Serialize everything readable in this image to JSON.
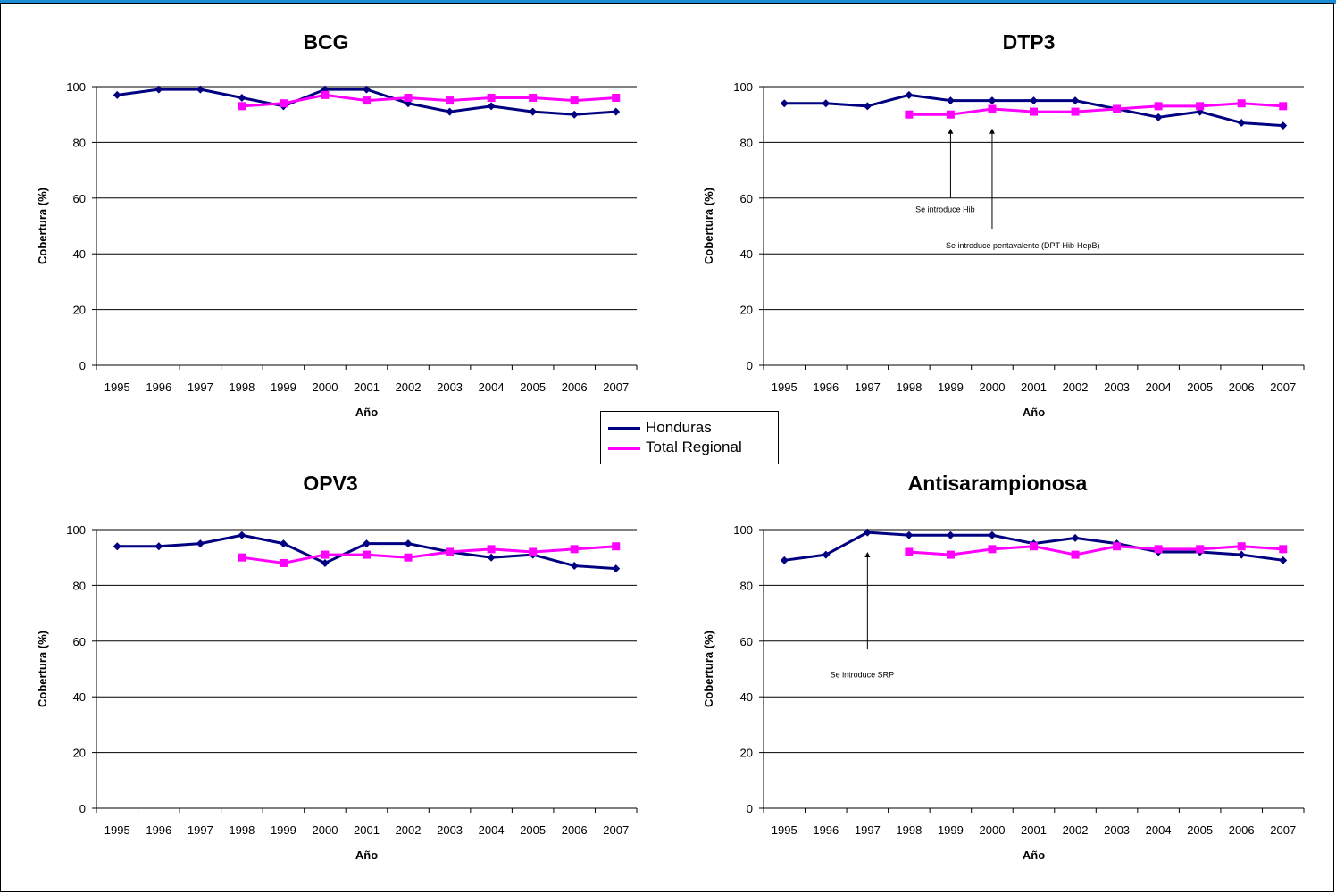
{
  "colors": {
    "honduras": "#000080",
    "regional": "#ff00ff",
    "header_bar": "#1a8ed6"
  },
  "legend": [
    {
      "name": "Honduras",
      "color": "#000080"
    },
    {
      "name": "Total Regional",
      "color": "#ff00ff"
    }
  ],
  "chart_data": [
    {
      "type": "line",
      "title": "BCG",
      "xlabel": "Año",
      "ylabel": "Cobertura (%)",
      "ylim": [
        0,
        100
      ],
      "yticks": [
        0,
        20,
        40,
        60,
        80,
        100
      ],
      "categories": [
        "1995",
        "1996",
        "1997",
        "1998",
        "1999",
        "2000",
        "2001",
        "2002",
        "2003",
        "2004",
        "2005",
        "2006",
        "2007"
      ],
      "grid": true,
      "series": [
        {
          "name": "Honduras",
          "values": [
            97,
            99,
            99,
            96,
            93,
            99,
            99,
            94,
            91,
            93,
            91,
            90,
            91
          ]
        },
        {
          "name": "Total Regional",
          "values": [
            null,
            null,
            null,
            93,
            94,
            97,
            95,
            96,
            95,
            96,
            96,
            95,
            96
          ]
        }
      ],
      "annotations": []
    },
    {
      "type": "line",
      "title": "DTP3",
      "xlabel": "Año",
      "ylabel": "Cobertura (%)",
      "ylim": [
        0,
        100
      ],
      "yticks": [
        0,
        20,
        40,
        60,
        80,
        100
      ],
      "categories": [
        "1995",
        "1996",
        "1997",
        "1998",
        "1999",
        "2000",
        "2001",
        "2002",
        "2003",
        "2004",
        "2005",
        "2006",
        "2007"
      ],
      "grid": true,
      "series": [
        {
          "name": "Honduras",
          "values": [
            94,
            94,
            93,
            97,
            95,
            95,
            95,
            95,
            92,
            89,
            91,
            87,
            86
          ]
        },
        {
          "name": "Total Regional",
          "values": [
            null,
            null,
            null,
            90,
            90,
            92,
            91,
            91,
            92,
            93,
            93,
            94,
            93
          ]
        }
      ],
      "annotations": [
        {
          "text": "Se introduce Hib",
          "x": "1999",
          "arrow_from": 60,
          "arrow_to": 85,
          "text_y": 55
        },
        {
          "text": "Se introduce pentavalente (DPT-Hib-HepB)",
          "x": "2000",
          "arrow_from": 49,
          "arrow_to": 85,
          "text_y": 42
        }
      ]
    },
    {
      "type": "line",
      "title": "OPV3",
      "xlabel": "Año",
      "ylabel": "Cobertura (%)",
      "ylim": [
        0,
        100
      ],
      "yticks": [
        0,
        20,
        40,
        60,
        80,
        100
      ],
      "categories": [
        "1995",
        "1996",
        "1997",
        "1998",
        "1999",
        "2000",
        "2001",
        "2002",
        "2003",
        "2004",
        "2005",
        "2006",
        "2007"
      ],
      "grid": true,
      "series": [
        {
          "name": "Honduras",
          "values": [
            94,
            94,
            95,
            98,
            95,
            88,
            95,
            95,
            92,
            90,
            91,
            87,
            86
          ]
        },
        {
          "name": "Total Regional",
          "values": [
            null,
            null,
            null,
            90,
            88,
            91,
            91,
            90,
            92,
            93,
            92,
            93,
            94
          ]
        }
      ],
      "annotations": []
    },
    {
      "type": "line",
      "title": "Antisarampionosa",
      "xlabel": "Año",
      "ylabel": "Cobertura (%)",
      "ylim": [
        0,
        100
      ],
      "yticks": [
        0,
        20,
        40,
        60,
        80,
        100
      ],
      "categories": [
        "1995",
        "1996",
        "1997",
        "1998",
        "1999",
        "2000",
        "2001",
        "2002",
        "2003",
        "2004",
        "2005",
        "2006",
        "2007"
      ],
      "grid": true,
      "series": [
        {
          "name": "Honduras",
          "values": [
            89,
            91,
            99,
            98,
            98,
            98,
            95,
            97,
            95,
            92,
            92,
            91,
            89
          ]
        },
        {
          "name": "Total Regional",
          "values": [
            null,
            null,
            null,
            92,
            91,
            93,
            94,
            91,
            94,
            93,
            93,
            94,
            93
          ]
        }
      ],
      "annotations": [
        {
          "text": "Se introduce SRP",
          "x": "1997",
          "arrow_from": 57,
          "arrow_to": 92,
          "text_y": 47
        }
      ]
    }
  ]
}
